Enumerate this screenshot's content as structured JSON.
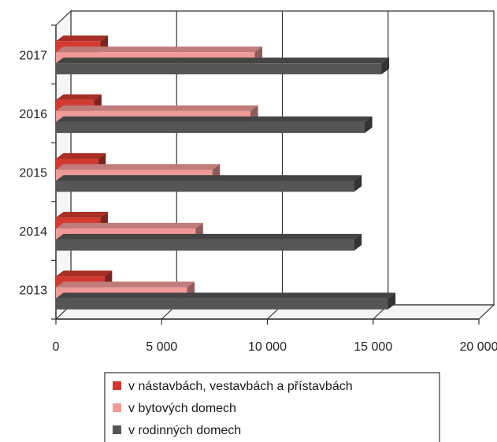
{
  "chart_data": {
    "type": "bar",
    "orientation": "horizontal",
    "style": "3d",
    "categories": [
      "2013",
      "2014",
      "2015",
      "2016",
      "2017"
    ],
    "series": [
      {
        "name": "v nástavbách, vestavbách a přístavbách",
        "color": "#d23a30",
        "values": [
          2300,
          2100,
          2000,
          1800,
          2100
        ]
      },
      {
        "name": "v bytových domech",
        "color": "#f09a98",
        "values": [
          6200,
          6600,
          7400,
          9200,
          9400
        ]
      },
      {
        "name": "v rodinných domech",
        "color": "#555555",
        "values": [
          15700,
          14100,
          14100,
          14600,
          15400
        ]
      }
    ],
    "xlim": [
      0,
      20000
    ],
    "xticks": [
      0,
      5000,
      10000,
      15000,
      20000
    ],
    "xtick_labels": [
      "0",
      "5 000",
      "10 000",
      "15 000",
      "20 000"
    ],
    "grid": true,
    "legend_position": "bottom"
  }
}
